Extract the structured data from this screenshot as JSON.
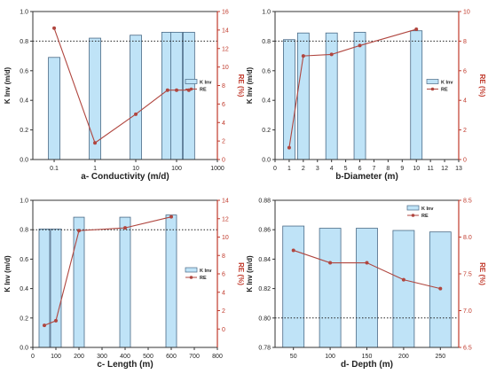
{
  "chart_data": [
    {
      "type": "bar",
      "panel_label": "a- Conductivity (m/d)",
      "x_scale": "log",
      "xlim": [
        0.03,
        1000
      ],
      "x_ticks": [
        0.1,
        1,
        10,
        100,
        1000
      ],
      "x_tick_labels": [
        "0.1",
        "1",
        "10",
        "100",
        "1000"
      ],
      "ylabel": "K Inv (m/d)",
      "y2label": "RE (%)",
      "ylim": [
        0,
        1.0
      ],
      "y_ticks": [
        0.0,
        0.2,
        0.4,
        0.6,
        0.8,
        1.0
      ],
      "y_tick_labels": [
        "0.0",
        "0.2",
        "0.4",
        "0.6",
        "0.8",
        "1.0"
      ],
      "y2lim": [
        0,
        16
      ],
      "y2_ticks": [
        0,
        2,
        4,
        6,
        8,
        10,
        12,
        14,
        16
      ],
      "reference_line_y": 0.8,
      "series": [
        {
          "name": "K Inv",
          "kind": "bar",
          "x": [
            0.1,
            1,
            10,
            60,
            100,
            200
          ],
          "values": [
            0.69,
            0.82,
            0.84,
            0.86,
            0.86,
            0.86
          ]
        },
        {
          "name": "RE",
          "kind": "line",
          "axis": "right",
          "x": [
            0.1,
            1,
            10,
            60,
            100,
            200
          ],
          "values": [
            14.2,
            1.8,
            4.9,
            7.5,
            7.5,
            7.5
          ]
        }
      ],
      "legend_position": "center-right"
    },
    {
      "type": "bar",
      "panel_label": "b-Diameter (m)",
      "xlim": [
        0,
        13
      ],
      "x_ticks": [
        0,
        1,
        2,
        3,
        4,
        5,
        6,
        7,
        8,
        9,
        10,
        11,
        12,
        13
      ],
      "x_tick_labels": [
        "0",
        "1",
        "2",
        "3",
        "4",
        "5",
        "6",
        "7",
        "8",
        "9",
        "10",
        "11",
        "12",
        "13"
      ],
      "ylabel": "K Inv (m/d)",
      "y2label": "RE (%)",
      "ylim": [
        0,
        1.0
      ],
      "y_ticks": [
        0.0,
        0.2,
        0.4,
        0.6,
        0.8,
        1.0
      ],
      "y_tick_labels": [
        "0.0",
        "0.2",
        "0.4",
        "0.6",
        "0.8",
        "1.0"
      ],
      "y2lim": [
        0,
        10
      ],
      "y2_ticks": [
        0,
        2,
        4,
        6,
        8,
        10
      ],
      "reference_line_y": 0.8,
      "series": [
        {
          "name": "K Inv",
          "kind": "bar",
          "x": [
            1,
            2,
            4,
            6,
            10
          ],
          "values": [
            0.81,
            0.855,
            0.855,
            0.86,
            0.87
          ]
        },
        {
          "name": "RE",
          "kind": "line",
          "axis": "right",
          "x": [
            1,
            2,
            4,
            6,
            10
          ],
          "values": [
            0.8,
            7.0,
            7.1,
            7.7,
            8.8
          ]
        }
      ],
      "legend_position": "center-right"
    },
    {
      "type": "bar",
      "panel_label": "c- Length (m)",
      "xlim": [
        0,
        800
      ],
      "x_ticks": [
        0,
        100,
        200,
        300,
        400,
        500,
        600,
        700,
        800
      ],
      "x_tick_labels": [
        "0",
        "100",
        "200",
        "300",
        "400",
        "500",
        "600",
        "700",
        "800"
      ],
      "ylabel": "K Inv (m/d)",
      "y2label": "RE (%)",
      "ylim": [
        0,
        1.0
      ],
      "y_ticks": [
        0.0,
        0.2,
        0.4,
        0.6,
        0.8,
        1.0
      ],
      "y_tick_labels": [
        "0.0",
        "0.2",
        "0.4",
        "0.6",
        "0.8",
        "1.0"
      ],
      "y2lim": [
        -2,
        14
      ],
      "y2_ticks": [
        0,
        2,
        4,
        6,
        8,
        10,
        12,
        14
      ],
      "reference_line_y": 0.8,
      "series": [
        {
          "name": "K Inv",
          "kind": "bar",
          "x": [
            50,
            100,
            200,
            400,
            600
          ],
          "values": [
            0.805,
            0.805,
            0.885,
            0.885,
            0.9
          ]
        },
        {
          "name": "RE",
          "kind": "line",
          "axis": "right",
          "x": [
            50,
            100,
            200,
            400,
            600
          ],
          "values": [
            0.4,
            0.9,
            10.7,
            11.0,
            12.2
          ]
        }
      ],
      "legend_position": "center-right"
    },
    {
      "type": "bar",
      "panel_label": "d- Depth (m)",
      "x_categories": [
        "50",
        "100",
        "150",
        "200",
        "250"
      ],
      "ylabel": "K Inv (m/d)",
      "y2label": "RE (%)",
      "ylim": [
        0.78,
        0.88
      ],
      "y_ticks": [
        0.78,
        0.8,
        0.82,
        0.84,
        0.86,
        0.88
      ],
      "y_tick_labels": [
        "0.78",
        "0.80",
        "0.82",
        "0.84",
        "0.86",
        "0.88"
      ],
      "y2lim": [
        6.5,
        8.5
      ],
      "y2_ticks": [
        6.5,
        7.0,
        7.5,
        8.0,
        8.5
      ],
      "y2_tick_labels": [
        "6.5",
        "7.0",
        "7.5",
        "8.0",
        "8.5"
      ],
      "reference_line_y": 0.8,
      "series": [
        {
          "name": "K Inv",
          "kind": "bar",
          "values": [
            0.8625,
            0.861,
            0.861,
            0.8595,
            0.8585
          ]
        },
        {
          "name": "RE",
          "kind": "line",
          "axis": "right",
          "values": [
            7.82,
            7.65,
            7.65,
            7.42,
            7.3
          ]
        }
      ],
      "legend_position": "top-right"
    }
  ],
  "colors": {
    "bar_fill": "#bfe3f7",
    "bar_stroke": "#4a6a86",
    "line": "#b0463f",
    "right_axis": "#c0392b",
    "axis": "#333333",
    "text": "#222222"
  }
}
